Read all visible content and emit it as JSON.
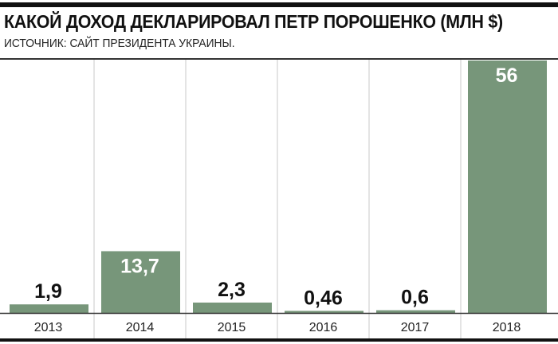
{
  "chart_data": {
    "type": "bar",
    "title": "КАКОЙ ДОХОД ДЕКЛАРИРОВАЛ ПЕТР ПОРОШЕНКО (МЛН $)",
    "subtitle": "ИСТОЧНИК: САЙТ ПРЕЗИДЕНТА УКРАИНЫ.",
    "categories": [
      "2013",
      "2014",
      "2015",
      "2016",
      "2017",
      "2018"
    ],
    "values": [
      1.9,
      13.7,
      2.3,
      0.46,
      0.6,
      56
    ],
    "value_labels": [
      "1,9",
      "13,7",
      "2,3",
      "0,46",
      "0,6",
      "56"
    ],
    "xlabel": "",
    "ylabel": "",
    "ylim": [
      0,
      56
    ],
    "grid": false,
    "colors": {
      "bar": "#77967A",
      "divider": "#c8c8c8",
      "label_inside": "#ffffff"
    }
  }
}
